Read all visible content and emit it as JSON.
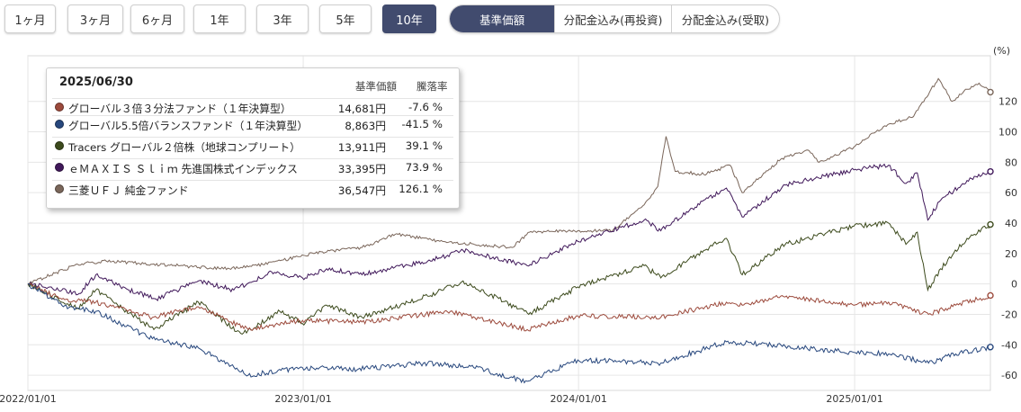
{
  "period_tabs": [
    {
      "label": "1ヶ月",
      "active": false
    },
    {
      "label": "3ヶ月",
      "active": false
    },
    {
      "label": "6ヶ月",
      "active": false
    },
    {
      "label": "1年",
      "active": false
    },
    {
      "label": "3年",
      "active": false
    },
    {
      "label": "5年",
      "active": false
    },
    {
      "label": "10年",
      "active": true
    }
  ],
  "mode_tabs": [
    {
      "label": "基準価額",
      "active": true
    },
    {
      "label": "分配金込み(再投資)",
      "active": false
    },
    {
      "label": "分配金込み(受取)",
      "active": false
    }
  ],
  "tooltip": {
    "date": "2025/06/30",
    "col_price": "基準価額",
    "col_pct": "騰落率",
    "rows": [
      {
        "name": "グローバル３倍３分法ファンド（１年決算型）",
        "price": "14,681円",
        "pct": "-7.6 %",
        "color": "#9c4a3c"
      },
      {
        "name": "グローバル5.5倍バランスファンド（１年決算型）",
        "price": "8,863円",
        "pct": "-41.5 %",
        "color": "#27477d"
      },
      {
        "name": "Tracers グローバル２倍株（地球コンプリート）",
        "price": "13,911円",
        "pct": "39.1 %",
        "color": "#3c4a1c"
      },
      {
        "name": "ｅＭＡＸＩＳ Ｓｌｉｍ 先進国株式インデックス",
        "price": "33,395円",
        "pct": "73.9 %",
        "color": "#40185a"
      },
      {
        "name": "三菱ＵＦＪ 純金ファンド",
        "price": "36,547円",
        "pct": "126.1 %",
        "color": "#7a665a"
      }
    ]
  },
  "chart_data": {
    "type": "line",
    "ylabel": "(%)",
    "ylim": [
      -70,
      150
    ],
    "y_ticks": [
      -60,
      -40,
      -20,
      0,
      20,
      40,
      60,
      80,
      100,
      120
    ],
    "x_ticks": [
      "2022/01/01",
      "2023/01/01",
      "2024/01/01",
      "2025/01/01"
    ],
    "x_range": [
      "2022/01/01",
      "2025/06/30"
    ],
    "grid": true,
    "series": [
      {
        "name": "三菱ＵＦＪ 純金ファンド",
        "color": "#7a665a",
        "points": [
          [
            "2022/01/01",
            0
          ],
          [
            "2022/03/08",
            13
          ],
          [
            "2022/04/15",
            15
          ],
          [
            "2022/06/15",
            13
          ],
          [
            "2022/09/25",
            10
          ],
          [
            "2022/11/01",
            12
          ],
          [
            "2023/01/15",
            20
          ],
          [
            "2023/03/20",
            24
          ],
          [
            "2023/05/05",
            33
          ],
          [
            "2023/07/01",
            28
          ],
          [
            "2023/10/05",
            24
          ],
          [
            "2023/10/28",
            34
          ],
          [
            "2023/12/31",
            35
          ],
          [
            "2024/02/15",
            35
          ],
          [
            "2024/03/28",
            52
          ],
          [
            "2024/04/15",
            64
          ],
          [
            "2024/04/26",
            97
          ],
          [
            "2024/05/08",
            74
          ],
          [
            "2024/06/15",
            72
          ],
          [
            "2024/07/20",
            78
          ],
          [
            "2024/08/05",
            60
          ],
          [
            "2024/09/25",
            82
          ],
          [
            "2024/10/31",
            88
          ],
          [
            "2024/11/15",
            80
          ],
          [
            "2024/12/31",
            90
          ],
          [
            "2025/02/10",
            104
          ],
          [
            "2025/03/20",
            110
          ],
          [
            "2025/04/22",
            135
          ],
          [
            "2025/05/10",
            120
          ],
          [
            "2025/05/30",
            128
          ],
          [
            "2025/06/15",
            132
          ],
          [
            "2025/06/30",
            126.1
          ]
        ]
      },
      {
        "name": "ｅＭＡＸＩＳ Ｓｌｉｍ 先進国株式インデックス",
        "color": "#40185a",
        "points": [
          [
            "2022/01/01",
            0
          ],
          [
            "2022/02/01",
            -2
          ],
          [
            "2022/03/08",
            -7
          ],
          [
            "2022/04/01",
            6
          ],
          [
            "2022/05/15",
            -4
          ],
          [
            "2022/06/20",
            -10
          ],
          [
            "2022/08/15",
            2
          ],
          [
            "2022/10/01",
            -4
          ],
          [
            "2022/11/20",
            8
          ],
          [
            "2022/12/31",
            4
          ],
          [
            "2023/02/01",
            10
          ],
          [
            "2023/03/20",
            6
          ],
          [
            "2023/06/15",
            15
          ],
          [
            "2023/08/01",
            22
          ],
          [
            "2023/10/25",
            12
          ],
          [
            "2023/12/31",
            28
          ],
          [
            "2024/03/28",
            42
          ],
          [
            "2024/04/19",
            35
          ],
          [
            "2024/06/15",
            55
          ],
          [
            "2024/07/15",
            63
          ],
          [
            "2024/08/05",
            44
          ],
          [
            "2024/10/01",
            65
          ],
          [
            "2024/12/31",
            75
          ],
          [
            "2025/02/15",
            78
          ],
          [
            "2025/03/10",
            66
          ],
          [
            "2025/03/25",
            73
          ],
          [
            "2025/04/08",
            42
          ],
          [
            "2025/04/25",
            55
          ],
          [
            "2025/05/30",
            68
          ],
          [
            "2025/06/30",
            73.9
          ]
        ]
      },
      {
        "name": "Tracers グローバル２倍株（地球コンプリート）",
        "color": "#3c4a1c",
        "points": [
          [
            "2022/01/01",
            0
          ],
          [
            "2022/03/08",
            -16
          ],
          [
            "2022/04/01",
            -4
          ],
          [
            "2022/06/17",
            -30
          ],
          [
            "2022/08/15",
            -12
          ],
          [
            "2022/10/12",
            -33
          ],
          [
            "2022/12/01",
            -18
          ],
          [
            "2022/12/31",
            -26
          ],
          [
            "2023/02/01",
            -14
          ],
          [
            "2023/03/20",
            -22
          ],
          [
            "2023/06/15",
            -8
          ],
          [
            "2023/08/01",
            2
          ],
          [
            "2023/10/27",
            -20
          ],
          [
            "2023/12/31",
            -2
          ],
          [
            "2024/03/28",
            12
          ],
          [
            "2024/04/19",
            4
          ],
          [
            "2024/06/15",
            22
          ],
          [
            "2024/07/15",
            30
          ],
          [
            "2024/08/05",
            6
          ],
          [
            "2024/10/01",
            26
          ],
          [
            "2024/12/31",
            38
          ],
          [
            "2025/02/15",
            40
          ],
          [
            "2025/03/10",
            26
          ],
          [
            "2025/03/25",
            34
          ],
          [
            "2025/04/08",
            -4
          ],
          [
            "2025/04/25",
            10
          ],
          [
            "2025/05/30",
            30
          ],
          [
            "2025/06/30",
            39.1
          ]
        ]
      },
      {
        "name": "グローバル３倍３分法ファンド（１年決算型）",
        "color": "#9c4a3c",
        "points": [
          [
            "2022/01/01",
            0
          ],
          [
            "2022/02/15",
            -10
          ],
          [
            "2022/04/01",
            -12
          ],
          [
            "2022/06/15",
            -22
          ],
          [
            "2022/08/15",
            -15
          ],
          [
            "2022/10/20",
            -30
          ],
          [
            "2022/12/31",
            -24
          ],
          [
            "2023/03/20",
            -25
          ],
          [
            "2023/07/15",
            -18
          ],
          [
            "2023/10/25",
            -30
          ],
          [
            "2023/12/31",
            -21
          ],
          [
            "2024/04/19",
            -22
          ],
          [
            "2024/07/15",
            -12
          ],
          [
            "2024/08/05",
            -14
          ],
          [
            "2024/09/25",
            -8
          ],
          [
            "2024/12/31",
            -14
          ],
          [
            "2025/02/15",
            -12
          ],
          [
            "2025/04/09",
            -20
          ],
          [
            "2025/05/15",
            -14
          ],
          [
            "2025/06/30",
            -7.6
          ]
        ]
      },
      {
        "name": "グローバル5.5倍バランスファンド（１年決算型）",
        "color": "#27477d",
        "points": [
          [
            "2022/01/01",
            0
          ],
          [
            "2022/02/15",
            -14
          ],
          [
            "2022/04/01",
            -18
          ],
          [
            "2022/06/15",
            -36
          ],
          [
            "2022/08/15",
            -42
          ],
          [
            "2022/10/20",
            -60
          ],
          [
            "2022/12/31",
            -55
          ],
          [
            "2023/03/15",
            -56
          ],
          [
            "2023/06/15",
            -52
          ],
          [
            "2023/08/15",
            -55
          ],
          [
            "2023/10/25",
            -64
          ],
          [
            "2023/12/31",
            -50
          ],
          [
            "2024/04/19",
            -52
          ],
          [
            "2024/07/15",
            -38
          ],
          [
            "2024/10/01",
            -41
          ],
          [
            "2024/12/31",
            -45
          ],
          [
            "2025/02/15",
            -46
          ],
          [
            "2025/04/09",
            -52
          ],
          [
            "2025/05/15",
            -46
          ],
          [
            "2025/06/30",
            -41.5
          ]
        ]
      }
    ]
  }
}
